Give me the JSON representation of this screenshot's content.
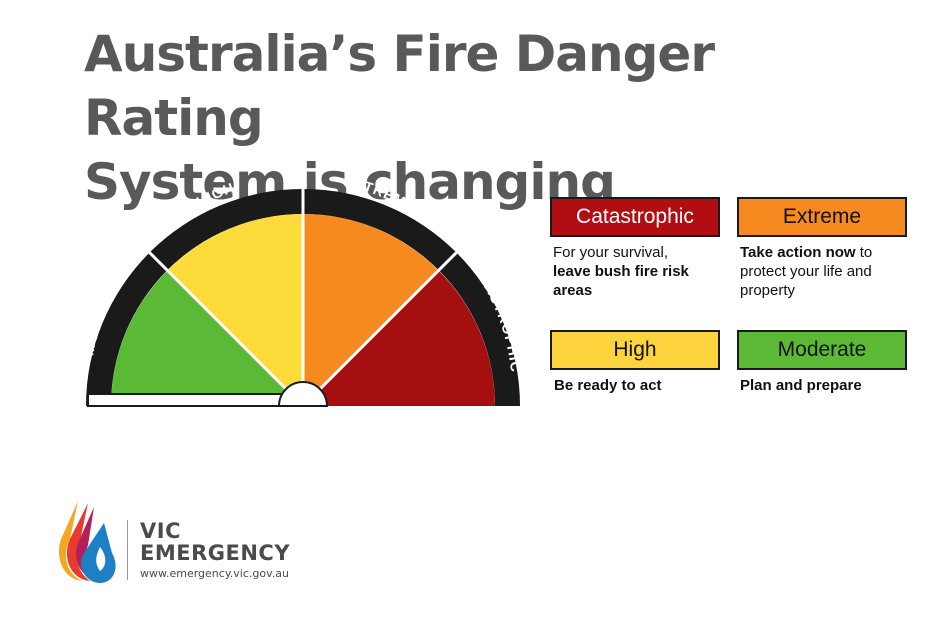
{
  "title": {
    "line1": "Australia’s Fire Danger Rating",
    "line2": "System is changing"
  },
  "gauge": {
    "segments": [
      {
        "label": "MODERATE",
        "color": "#5cb935"
      },
      {
        "label": "HIGH",
        "color": "#fddb3a"
      },
      {
        "label": "EXTREME",
        "color": "#f68a1f"
      },
      {
        "label": "CATASTROPHIC",
        "color": "#a50f0f"
      }
    ]
  },
  "legend": {
    "catastrophic": {
      "label": "Catastrophic",
      "color": "#b10d12",
      "text_color": "#ffffff",
      "desc_plain1": "For your survival,",
      "desc_bold": "leave bush fire risk areas",
      "desc_plain2": ""
    },
    "extreme": {
      "label": "Extreme",
      "color": "#f6891f",
      "text_color": "#111111",
      "desc_bold": "Take action now",
      "desc_plain": "to protect your life and property"
    },
    "high": {
      "label": "High",
      "color": "#fdd43e",
      "text_color": "#111111",
      "desc_bold": "Be ready to act"
    },
    "moderate": {
      "label": "Moderate",
      "color": "#5cb935",
      "text_color": "#111111",
      "desc_bold": "Plan and prepare"
    }
  },
  "logo": {
    "name_line1": "VIC",
    "name_line2": "EMERGENCY",
    "url": "www.emergency.vic.gov.au"
  }
}
